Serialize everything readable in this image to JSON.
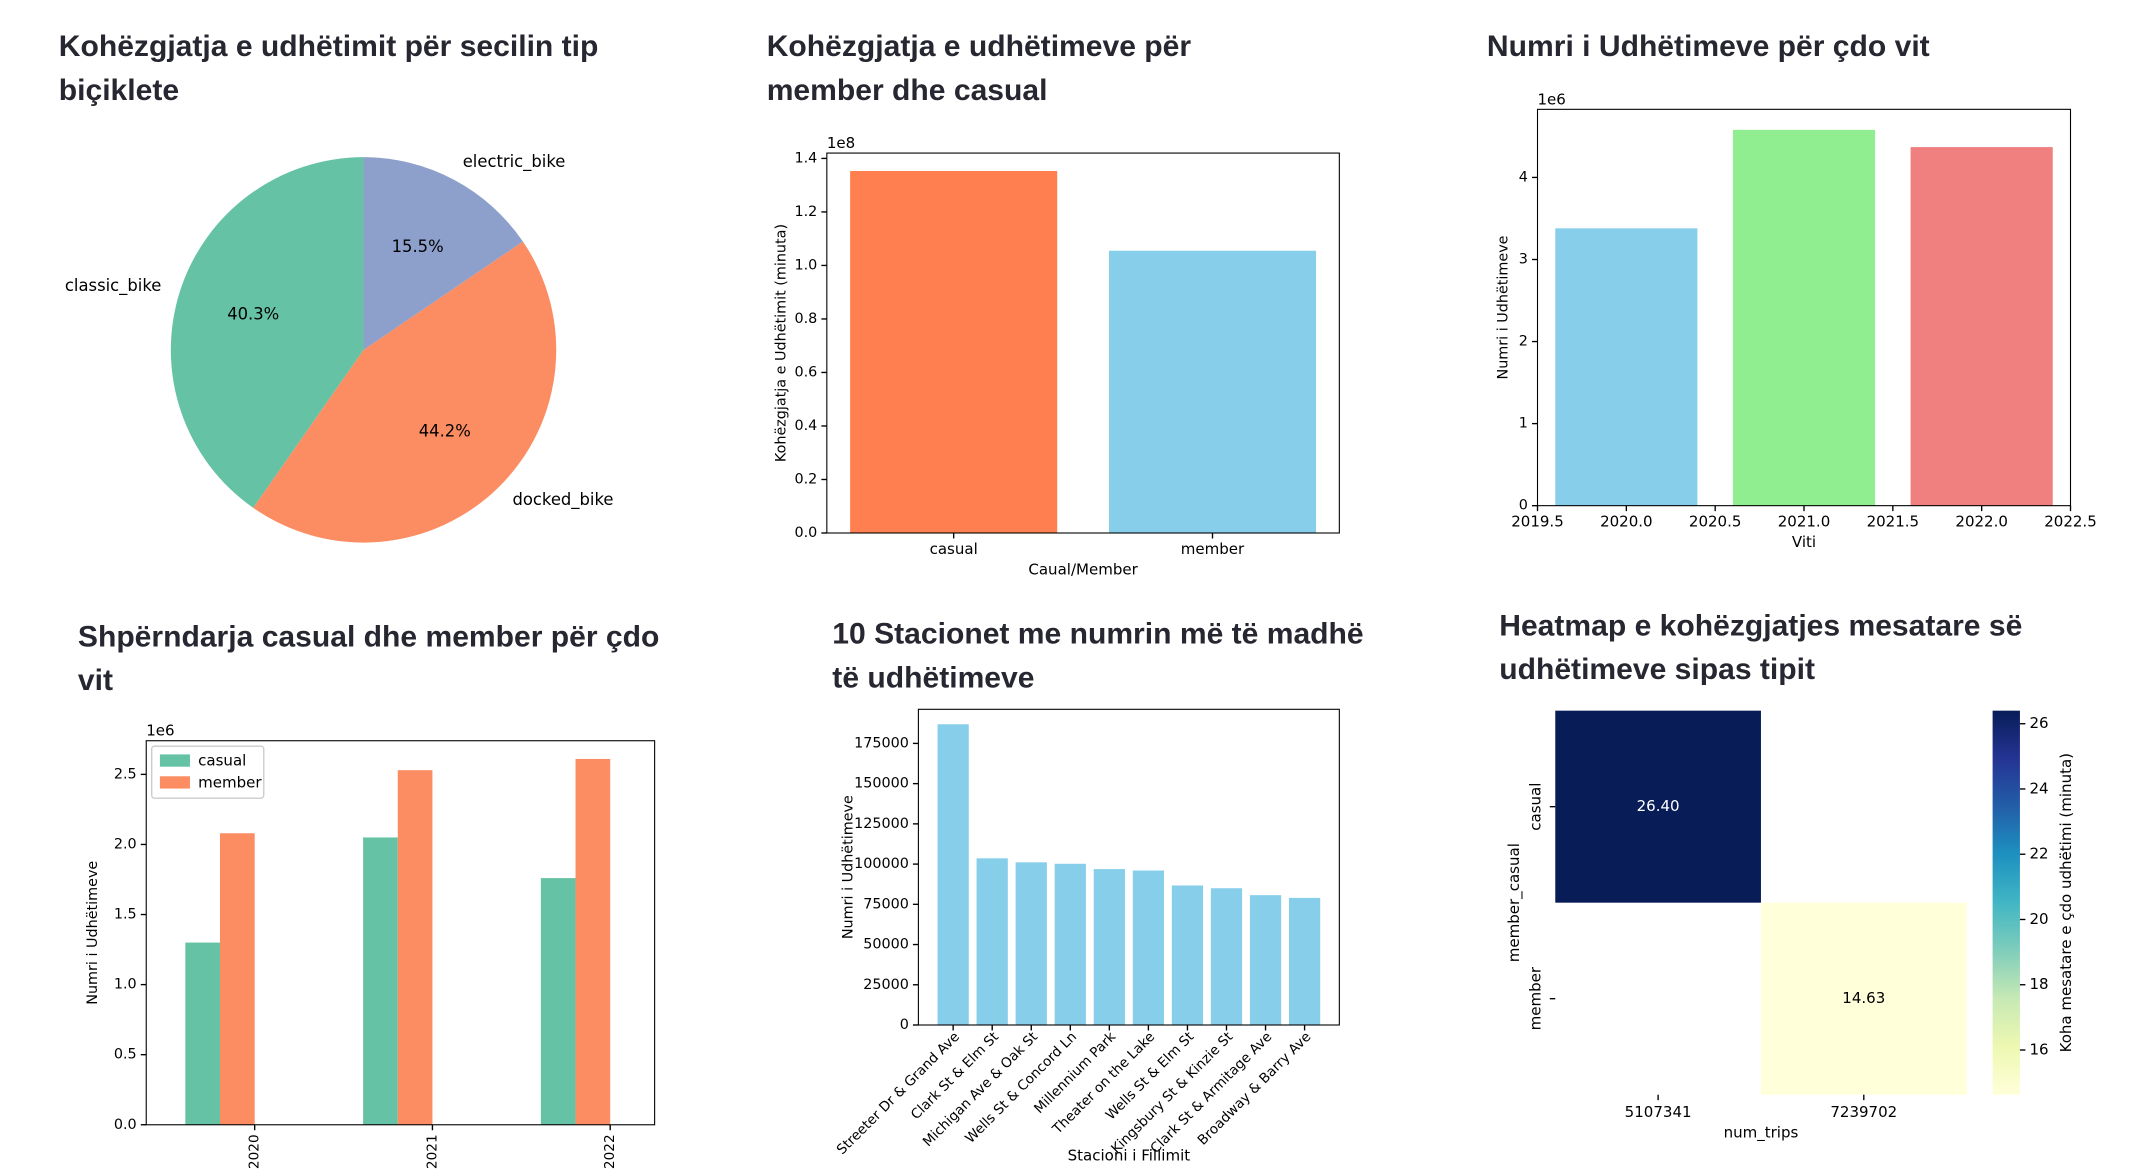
{
  "chart_data": [
    {
      "type": "pie",
      "title": "Kohëzgjatja e udhëtimit për secilin tip biçiklete",
      "categories": [
        "classic_bike",
        "docked_bike",
        "electric_bike"
      ],
      "values": [
        40.3,
        44.2,
        15.5
      ],
      "value_labels": [
        "40.3%",
        "44.2%",
        "15.5%"
      ],
      "colors": [
        "#66c2a5",
        "#fc8d62",
        "#8da0cb"
      ],
      "start_angle": 90
    },
    {
      "type": "bar",
      "title": "Kohëzgjatja e udhëtimeve për member dhe casual",
      "categories": [
        "casual",
        "member"
      ],
      "values": [
        135300000,
        105500000
      ],
      "colors": [
        "#ff7f50",
        "#87ceeb"
      ],
      "xlabel": "Caual/Member",
      "ylabel": "Kohëzgjatja e Udhëtimit (minuta)",
      "y_offset_label": "1e8",
      "ylim": [
        0,
        142000000
      ],
      "yticks": [
        {
          "value": 0,
          "label": "0.0"
        },
        {
          "value": 20000000,
          "label": "0.2"
        },
        {
          "value": 40000000,
          "label": "0.4"
        },
        {
          "value": 60000000,
          "label": "0.6"
        },
        {
          "value": 80000000,
          "label": "0.8"
        },
        {
          "value": 100000000,
          "label": "1.0"
        },
        {
          "value": 120000000,
          "label": "1.2"
        },
        {
          "value": 140000000,
          "label": "1.4"
        }
      ]
    },
    {
      "type": "bar",
      "title": "Numri i Udhëtimeve për çdo vit",
      "x": [
        2020,
        2021,
        2022
      ],
      "values": [
        3380000,
        4580000,
        4370000
      ],
      "colors": [
        "#87ceeb",
        "#90ee90",
        "#f08080"
      ],
      "xlabel": "Viti",
      "ylabel": "Numri i Udhëtimeve",
      "y_offset_label": "1e6",
      "xlim": [
        2019.5,
        2022.5
      ],
      "xticks": [
        {
          "value": 2019.5,
          "label": "2019.5"
        },
        {
          "value": 2020,
          "label": "2020.0"
        },
        {
          "value": 2020.5,
          "label": "2020.5"
        },
        {
          "value": 2021,
          "label": "2021.0"
        },
        {
          "value": 2021.5,
          "label": "2021.5"
        },
        {
          "value": 2022,
          "label": "2022.0"
        },
        {
          "value": 2022.5,
          "label": "2022.5"
        }
      ],
      "ylim": [
        0,
        4830000
      ],
      "yticks": [
        0,
        {
          "value": 1000000,
          "label": "1"
        },
        {
          "value": 2000000,
          "label": "2"
        },
        {
          "value": 3000000,
          "label": "3"
        },
        {
          "value": 4000000,
          "label": "4"
        }
      ]
    },
    {
      "type": "bar",
      "title": "Shpërndarja casual dhe member për çdo vit",
      "categories": [
        "2020",
        "2021",
        "2022"
      ],
      "series": [
        {
          "name": "casual",
          "color": "#66c2a5",
          "values": [
            1300000,
            2050000,
            1760000
          ]
        },
        {
          "name": "member",
          "color": "#fc8d62",
          "values": [
            2080000,
            2530000,
            2610000
          ]
        }
      ],
      "ylabel": "Numri i Udhëtimeve",
      "y_offset_label": "1e6",
      "ylim": [
        0,
        2740000
      ],
      "yticks": [
        {
          "value": 0,
          "label": "0.0"
        },
        {
          "value": 500000,
          "label": "0.5"
        },
        {
          "value": 1000000,
          "label": "1.0"
        },
        {
          "value": 1500000,
          "label": "1.5"
        },
        {
          "value": 2000000,
          "label": "2.0"
        },
        {
          "value": 2500000,
          "label": "2.5"
        }
      ],
      "legend": "upper left"
    },
    {
      "type": "bar",
      "title": "10 Stacionet me numrin më të madhë të udhëtimeve",
      "categories": [
        "Streeter Dr & Grand Ave",
        "Clark St & Elm St",
        "Michigan Ave & Oak St",
        "Wells St & Concord Ln",
        "Millennium Park",
        "Theater on the Lake",
        "Wells St & Elm St",
        "Kingsbury St & Kinzie St",
        "Clark St & Armitage Ave",
        "Broadway & Barry Ave"
      ],
      "values": [
        186900,
        103600,
        101100,
        100200,
        96900,
        96000,
        86700,
        85000,
        80700,
        79000
      ],
      "color": "#87ceeb",
      "xlabel": "Stacioni i Fillimit",
      "ylabel": "Numri i Udhëtimeve",
      "ylim": [
        0,
        196200
      ],
      "yticks": [
        0,
        25000,
        50000,
        75000,
        100000,
        125000,
        150000,
        175000
      ]
    },
    {
      "type": "heatmap",
      "title": "Heatmap e kohëzgjatjes mesatare së udhëtimeve sipas tipit",
      "x": [
        "5107341",
        "7239702"
      ],
      "y": [
        "casual",
        "member"
      ],
      "values": [
        [
          26.4,
          null
        ],
        [
          null,
          14.63
        ]
      ],
      "value_labels": [
        [
          "26.40",
          null
        ],
        [
          null,
          "14.63"
        ]
      ],
      "xlabel": "num_trips",
      "ylabel": "member_casual",
      "colorbar_label": "Koha mesatare e çdo udhëtimi (minuta)",
      "clim": [
        14.63,
        26.4
      ],
      "cticks": [
        16,
        18,
        20,
        22,
        24,
        26
      ],
      "colormap": "YlGnBu"
    }
  ]
}
